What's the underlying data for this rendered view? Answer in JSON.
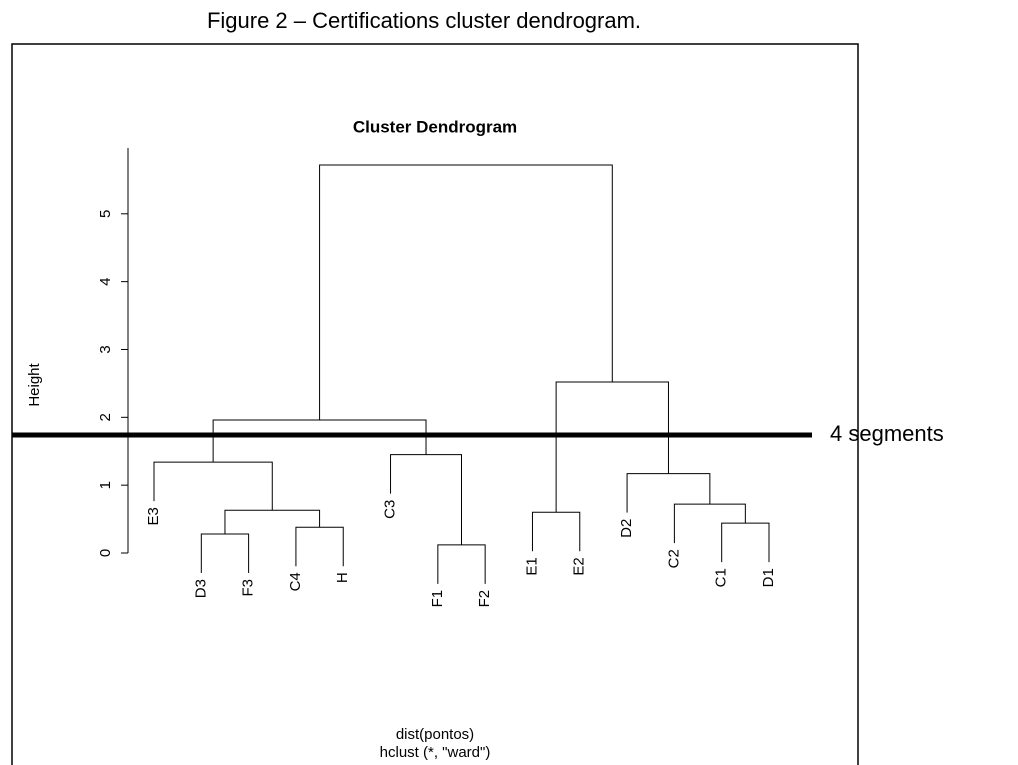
{
  "caption": "Figure 2 – Certifications cluster dendrogram.",
  "chart_data": {
    "type": "dendrogram",
    "title": "Cluster Dendrogram",
    "ylabel": "Height",
    "xlabel": "dist(pontos)",
    "sublabel": "hclust (*, \"ward\")",
    "labels": [
      "E3",
      "D3",
      "F3",
      "C4",
      "H",
      "C3",
      "F1",
      "F2",
      "E1",
      "E2",
      "D2",
      "C2",
      "C1",
      "D1"
    ],
    "merge": [
      [
        -2,
        -3
      ],
      [
        -4,
        -5
      ],
      [
        1,
        2
      ],
      [
        -1,
        3
      ],
      [
        -7,
        -8
      ],
      [
        -6,
        5
      ],
      [
        4,
        6
      ],
      [
        -9,
        -10
      ],
      [
        -13,
        -14
      ],
      [
        -12,
        9
      ],
      [
        -11,
        10
      ],
      [
        8,
        11
      ],
      [
        7,
        12
      ]
    ],
    "height": [
      0.28,
      0.38,
      0.63,
      1.34,
      0.12,
      1.45,
      1.96,
      0.6,
      0.44,
      0.72,
      1.17,
      2.52,
      5.72
    ],
    "ylim": [
      0,
      5.97
    ],
    "yticks": [
      0,
      1,
      2,
      3,
      4,
      5
    ],
    "cut_height": 1.74,
    "annotation": "4 segments"
  }
}
